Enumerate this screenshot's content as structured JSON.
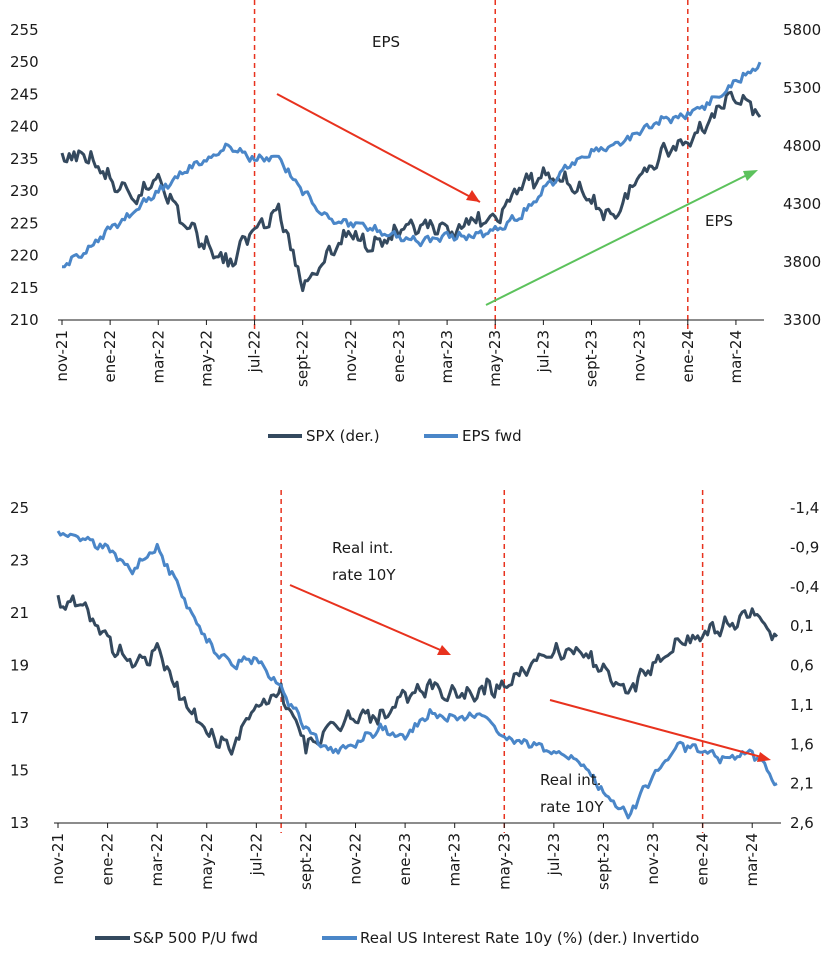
{
  "colors": {
    "spx": "#34495e",
    "eps": "#4a86c8",
    "red": "#e8321e",
    "green": "#5cc25c",
    "grid": "#d9d9d9"
  },
  "chart_data": [
    {
      "type": "line",
      "categories": [
        "nov-21",
        "ene-22",
        "mar-22",
        "may-22",
        "jul-22",
        "sept-22",
        "nov-22",
        "ene-23",
        "mar-23",
        "may-23",
        "jul-23",
        "sept-23",
        "nov-23",
        "ene-24",
        "mar-24"
      ],
      "y_left_ticks": [
        "255",
        "250",
        "245",
        "240",
        "235",
        "230",
        "225",
        "220",
        "215",
        "210"
      ],
      "y_right_ticks": [
        "5800",
        "5300",
        "4800",
        "4300",
        "3800",
        "3300"
      ],
      "ylim_left": [
        210,
        255
      ],
      "ylim_right": [
        3300,
        5800
      ],
      "legend": [
        "SPX (der.)",
        "EPS fwd"
      ],
      "legend_position": "bottom",
      "annotations": [
        "EPS",
        "EPS"
      ],
      "vlines": [
        "jul-22",
        "may-23",
        "ene-24"
      ],
      "series": [
        {
          "name": "SPX (der.)",
          "axis": "right",
          "x": [
            "nov-21",
            "dic-21",
            "ene-22",
            "feb-22",
            "mar-22",
            "abr-22",
            "may-22",
            "jun-22",
            "jul-22",
            "ago-22",
            "sept-22",
            "oct-22",
            "nov-22",
            "dic-22",
            "ene-23",
            "feb-23",
            "mar-23",
            "abr-23",
            "may-23",
            "jun-23",
            "jul-23",
            "ago-23",
            "sept-23",
            "oct-23",
            "nov-23",
            "dic-23",
            "ene-24",
            "feb-24",
            "mar-24",
            "abr-24"
          ],
          "values": [
            4680,
            4720,
            4500,
            4320,
            4550,
            4150,
            3950,
            3780,
            4100,
            4250,
            3600,
            3850,
            4050,
            3950,
            4050,
            4100,
            4050,
            4150,
            4150,
            4450,
            4550,
            4500,
            4300,
            4200,
            4550,
            4750,
            4850,
            5050,
            5250,
            5050
          ]
        },
        {
          "name": "EPS fwd",
          "axis": "left",
          "x": [
            "nov-21",
            "dic-21",
            "ene-22",
            "feb-22",
            "mar-22",
            "abr-22",
            "may-22",
            "jun-22",
            "jul-22",
            "ago-22",
            "sept-22",
            "oct-22",
            "nov-22",
            "dic-22",
            "ene-23",
            "feb-23",
            "mar-23",
            "abr-23",
            "may-23",
            "jun-23",
            "jul-23",
            "ago-23",
            "sept-23",
            "oct-23",
            "nov-23",
            "dic-23",
            "ene-24",
            "feb-24",
            "mar-24",
            "abr-24"
          ],
          "values": [
            218,
            221,
            224,
            227,
            230,
            233,
            235,
            237,
            235,
            235,
            230,
            226,
            225,
            224,
            223,
            222,
            223,
            223,
            224,
            226,
            230,
            234,
            236,
            237,
            239,
            241,
            242,
            244,
            247,
            250
          ]
        }
      ]
    },
    {
      "type": "line",
      "categories": [
        "nov-21",
        "ene-22",
        "mar-22",
        "may-22",
        "jul-22",
        "sept-22",
        "nov-22",
        "ene-23",
        "mar-23",
        "may-23",
        "jul-23",
        "sept-23",
        "nov-23",
        "ene-24",
        "mar-24"
      ],
      "y_left_ticks": [
        "25",
        "23",
        "21",
        "19",
        "17",
        "15",
        "13"
      ],
      "y_right_ticks": [
        "-1,4",
        "-0,9",
        "-0,4",
        "0,1",
        "0,6",
        "1,1",
        "1,6",
        "2,1",
        "2,6"
      ],
      "ylim_left": [
        13,
        25
      ],
      "ylim_right": [
        -1.4,
        2.6
      ],
      "right_axis_inverted": true,
      "legend": [
        "S&P 500 P/U fwd",
        "Real US Interest Rate 10y (%) (der.) Invertido"
      ],
      "legend_position": "bottom",
      "annotations": [
        "Real int.\nrate 10Y",
        "Real int.\nrate 10Y"
      ],
      "vlines": [
        "ago-22",
        "may-23",
        "ene-24"
      ],
      "series": [
        {
          "name": "S&P 500 P/U fwd",
          "axis": "left",
          "x": [
            "nov-21",
            "dic-21",
            "ene-22",
            "feb-22",
            "mar-22",
            "abr-22",
            "may-22",
            "jun-22",
            "jul-22",
            "ago-22",
            "sept-22",
            "oct-22",
            "nov-22",
            "dic-22",
            "ene-23",
            "feb-23",
            "mar-23",
            "abr-23",
            "may-23",
            "jun-23",
            "jul-23",
            "ago-23",
            "sept-23",
            "oct-23",
            "nov-23",
            "dic-23",
            "ene-24",
            "feb-24",
            "mar-24",
            "abr-24"
          ],
          "values": [
            21.5,
            21.2,
            20.0,
            19.0,
            19.5,
            17.8,
            16.5,
            15.8,
            17.5,
            18.0,
            16.0,
            16.5,
            17.2,
            17.0,
            17.8,
            18.2,
            17.8,
            18.0,
            18.3,
            19.0,
            19.5,
            19.6,
            18.8,
            18.0,
            19.0,
            19.8,
            20.3,
            20.6,
            21.0,
            20.1
          ]
        },
        {
          "name": "Real US Interest Rate 10y (%) (der.) Invertido",
          "axis": "right",
          "x": [
            "nov-21",
            "dic-21",
            "ene-22",
            "feb-22",
            "mar-22",
            "abr-22",
            "may-22",
            "jun-22",
            "jul-22",
            "ago-22",
            "sept-22",
            "oct-22",
            "nov-22",
            "dic-22",
            "ene-23",
            "feb-23",
            "mar-23",
            "abr-23",
            "may-23",
            "jun-23",
            "jul-23",
            "ago-23",
            "sept-23",
            "oct-23",
            "nov-23",
            "dic-23",
            "ene-24",
            "feb-24",
            "mar-24",
            "abr-24"
          ],
          "values": [
            -1.1,
            -1.0,
            -0.9,
            -0.6,
            -0.9,
            -0.3,
            0.3,
            0.6,
            0.5,
            0.9,
            1.4,
            1.7,
            1.6,
            1.4,
            1.5,
            1.2,
            1.3,
            1.2,
            1.5,
            1.6,
            1.7,
            1.8,
            2.2,
            2.5,
            2.0,
            1.6,
            1.7,
            1.8,
            1.7,
            2.1
          ]
        }
      ]
    }
  ]
}
